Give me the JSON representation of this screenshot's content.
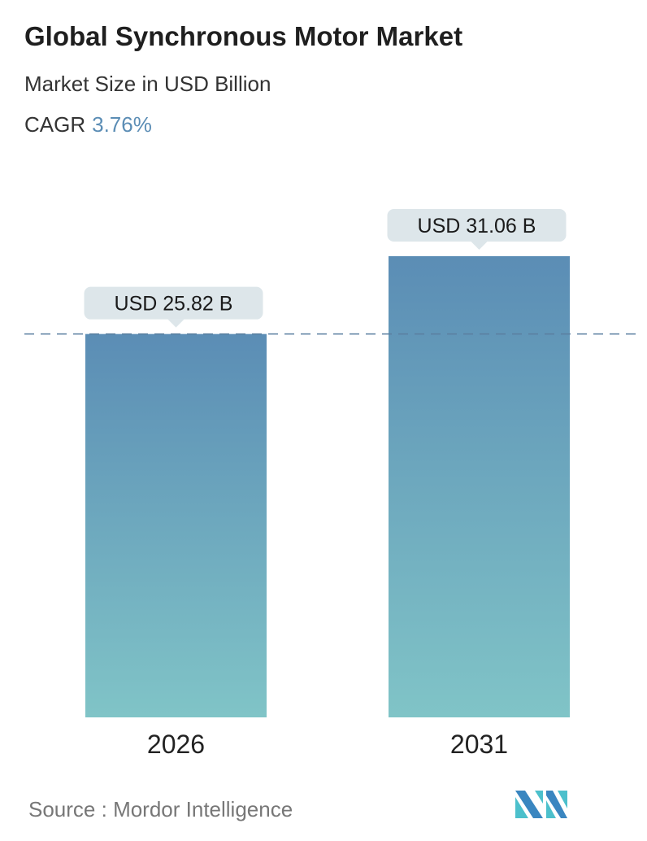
{
  "header": {
    "title": "Global Synchronous Motor Market",
    "subtitle": "Market Size in USD Billion",
    "cagr_label": "CAGR",
    "cagr_value": "3.76%"
  },
  "chart_data": {
    "type": "bar",
    "categories": [
      "2026",
      "2031"
    ],
    "values": [
      25.82,
      31.06
    ],
    "data_labels": [
      "USD 25.82 B",
      "USD 31.06 B"
    ],
    "ylim": [
      0,
      31.06
    ],
    "grid": false,
    "reference_line": 25.82,
    "colors": {
      "bar_top": "#5b8db5",
      "bar_bottom": "#80c4c7",
      "label_bg": "#dde6ea",
      "dashed_line": "#5b7fa0",
      "accent": "#5b8db5"
    }
  },
  "footer": {
    "source_label": "Source :",
    "source_name": "Mordor Intelligence",
    "logo_text": "MI"
  }
}
